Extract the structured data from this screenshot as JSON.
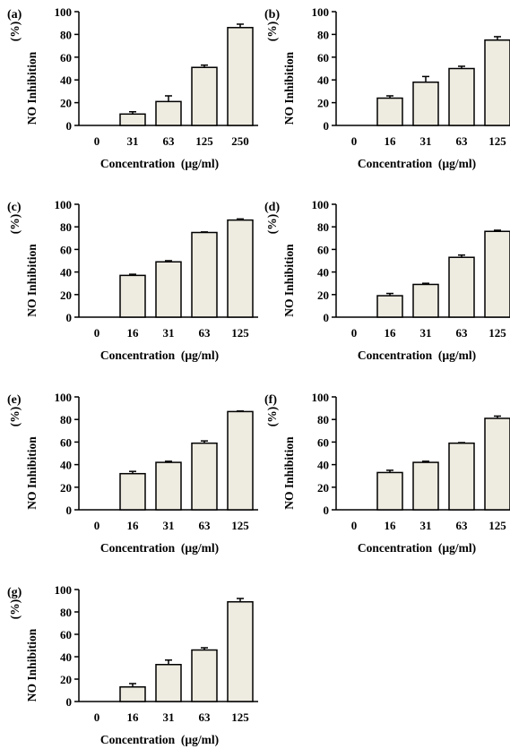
{
  "chart_data": [
    {
      "type": "bar",
      "panel_label": "(a)",
      "categories": [
        "0",
        "31",
        "63",
        "125",
        "250"
      ],
      "values": [
        0,
        10,
        21,
        51,
        86
      ],
      "errors": [
        0,
        2,
        5,
        2,
        3
      ],
      "xlabel": "Concentration  (µg/ml)",
      "ylabel": "NO Inhibition",
      "ylabel_unit": "(%)",
      "ylim": [
        0,
        100
      ],
      "yticks": [
        "0",
        "20",
        "40",
        "60",
        "80",
        "100"
      ],
      "bar_color": "#eeebe1"
    },
    {
      "type": "bar",
      "panel_label": "(b)",
      "categories": [
        "0",
        "16",
        "31",
        "63",
        "125"
      ],
      "values": [
        0,
        24,
        38,
        50,
        75
      ],
      "errors": [
        0,
        2,
        5,
        2,
        3
      ],
      "xlabel": "Concentration  (µg/ml)",
      "ylabel": "NO Inhibition",
      "ylabel_unit": "(%)",
      "ylim": [
        0,
        100
      ],
      "yticks": [
        "0",
        "20",
        "40",
        "60",
        "80",
        "100"
      ],
      "bar_color": "#eeebe1"
    },
    {
      "type": "bar",
      "panel_label": "(c)",
      "categories": [
        "0",
        "16",
        "31",
        "63",
        "125"
      ],
      "values": [
        0,
        37,
        49,
        75,
        86
      ],
      "errors": [
        0,
        1,
        1,
        0.5,
        1
      ],
      "xlabel": "Concentration  (µg/ml)",
      "ylabel": "NO Inhibition",
      "ylabel_unit": "(%)",
      "ylim": [
        0,
        100
      ],
      "yticks": [
        "0",
        "20",
        "40",
        "60",
        "80",
        "100"
      ],
      "bar_color": "#eeebe1"
    },
    {
      "type": "bar",
      "panel_label": "(d)",
      "categories": [
        "0",
        "16",
        "31",
        "63",
        "125"
      ],
      "values": [
        0,
        19,
        29,
        53,
        76
      ],
      "errors": [
        0,
        2,
        1,
        2,
        1
      ],
      "xlabel": "Concentration  (µg/ml)",
      "ylabel": "NO Inhibition",
      "ylabel_unit": "(%)",
      "ylim": [
        0,
        100
      ],
      "yticks": [
        "0",
        "20",
        "40",
        "60",
        "80",
        "100"
      ],
      "bar_color": "#eeebe1"
    },
    {
      "type": "bar",
      "panel_label": "(e)",
      "categories": [
        "0",
        "16",
        "31",
        "63",
        "125"
      ],
      "values": [
        0,
        32,
        42,
        59,
        87
      ],
      "errors": [
        0,
        2,
        1,
        2,
        0.5
      ],
      "xlabel": "Concentration  (µg/ml)",
      "ylabel": "NO Inhibition",
      "ylabel_unit": "(%)",
      "ylim": [
        0,
        100
      ],
      "yticks": [
        "0",
        "20",
        "40",
        "60",
        "80",
        "100"
      ],
      "bar_color": "#eeebe1"
    },
    {
      "type": "bar",
      "panel_label": "(f)",
      "categories": [
        "0",
        "16",
        "31",
        "63",
        "125"
      ],
      "values": [
        0,
        33,
        42,
        59,
        81
      ],
      "errors": [
        0,
        2,
        1,
        0.5,
        2
      ],
      "xlabel": "Concentration  (µg/ml)",
      "ylabel": "NO Inhibition",
      "ylabel_unit": "(%)",
      "ylim": [
        0,
        100
      ],
      "yticks": [
        "0",
        "20",
        "40",
        "60",
        "80",
        "100"
      ],
      "bar_color": "#eeebe1"
    },
    {
      "type": "bar",
      "panel_label": "(g)",
      "categories": [
        "0",
        "16",
        "31",
        "63",
        "125"
      ],
      "values": [
        0,
        13,
        33,
        46,
        89
      ],
      "errors": [
        0,
        3,
        4,
        2,
        3
      ],
      "xlabel": "Concentration  (µg/ml)",
      "ylabel": "NO Inhibition",
      "ylabel_unit": "(%)",
      "ylim": [
        0,
        100
      ],
      "yticks": [
        "0",
        "20",
        "40",
        "60",
        "80",
        "100"
      ],
      "bar_color": "#eeebe1"
    }
  ]
}
